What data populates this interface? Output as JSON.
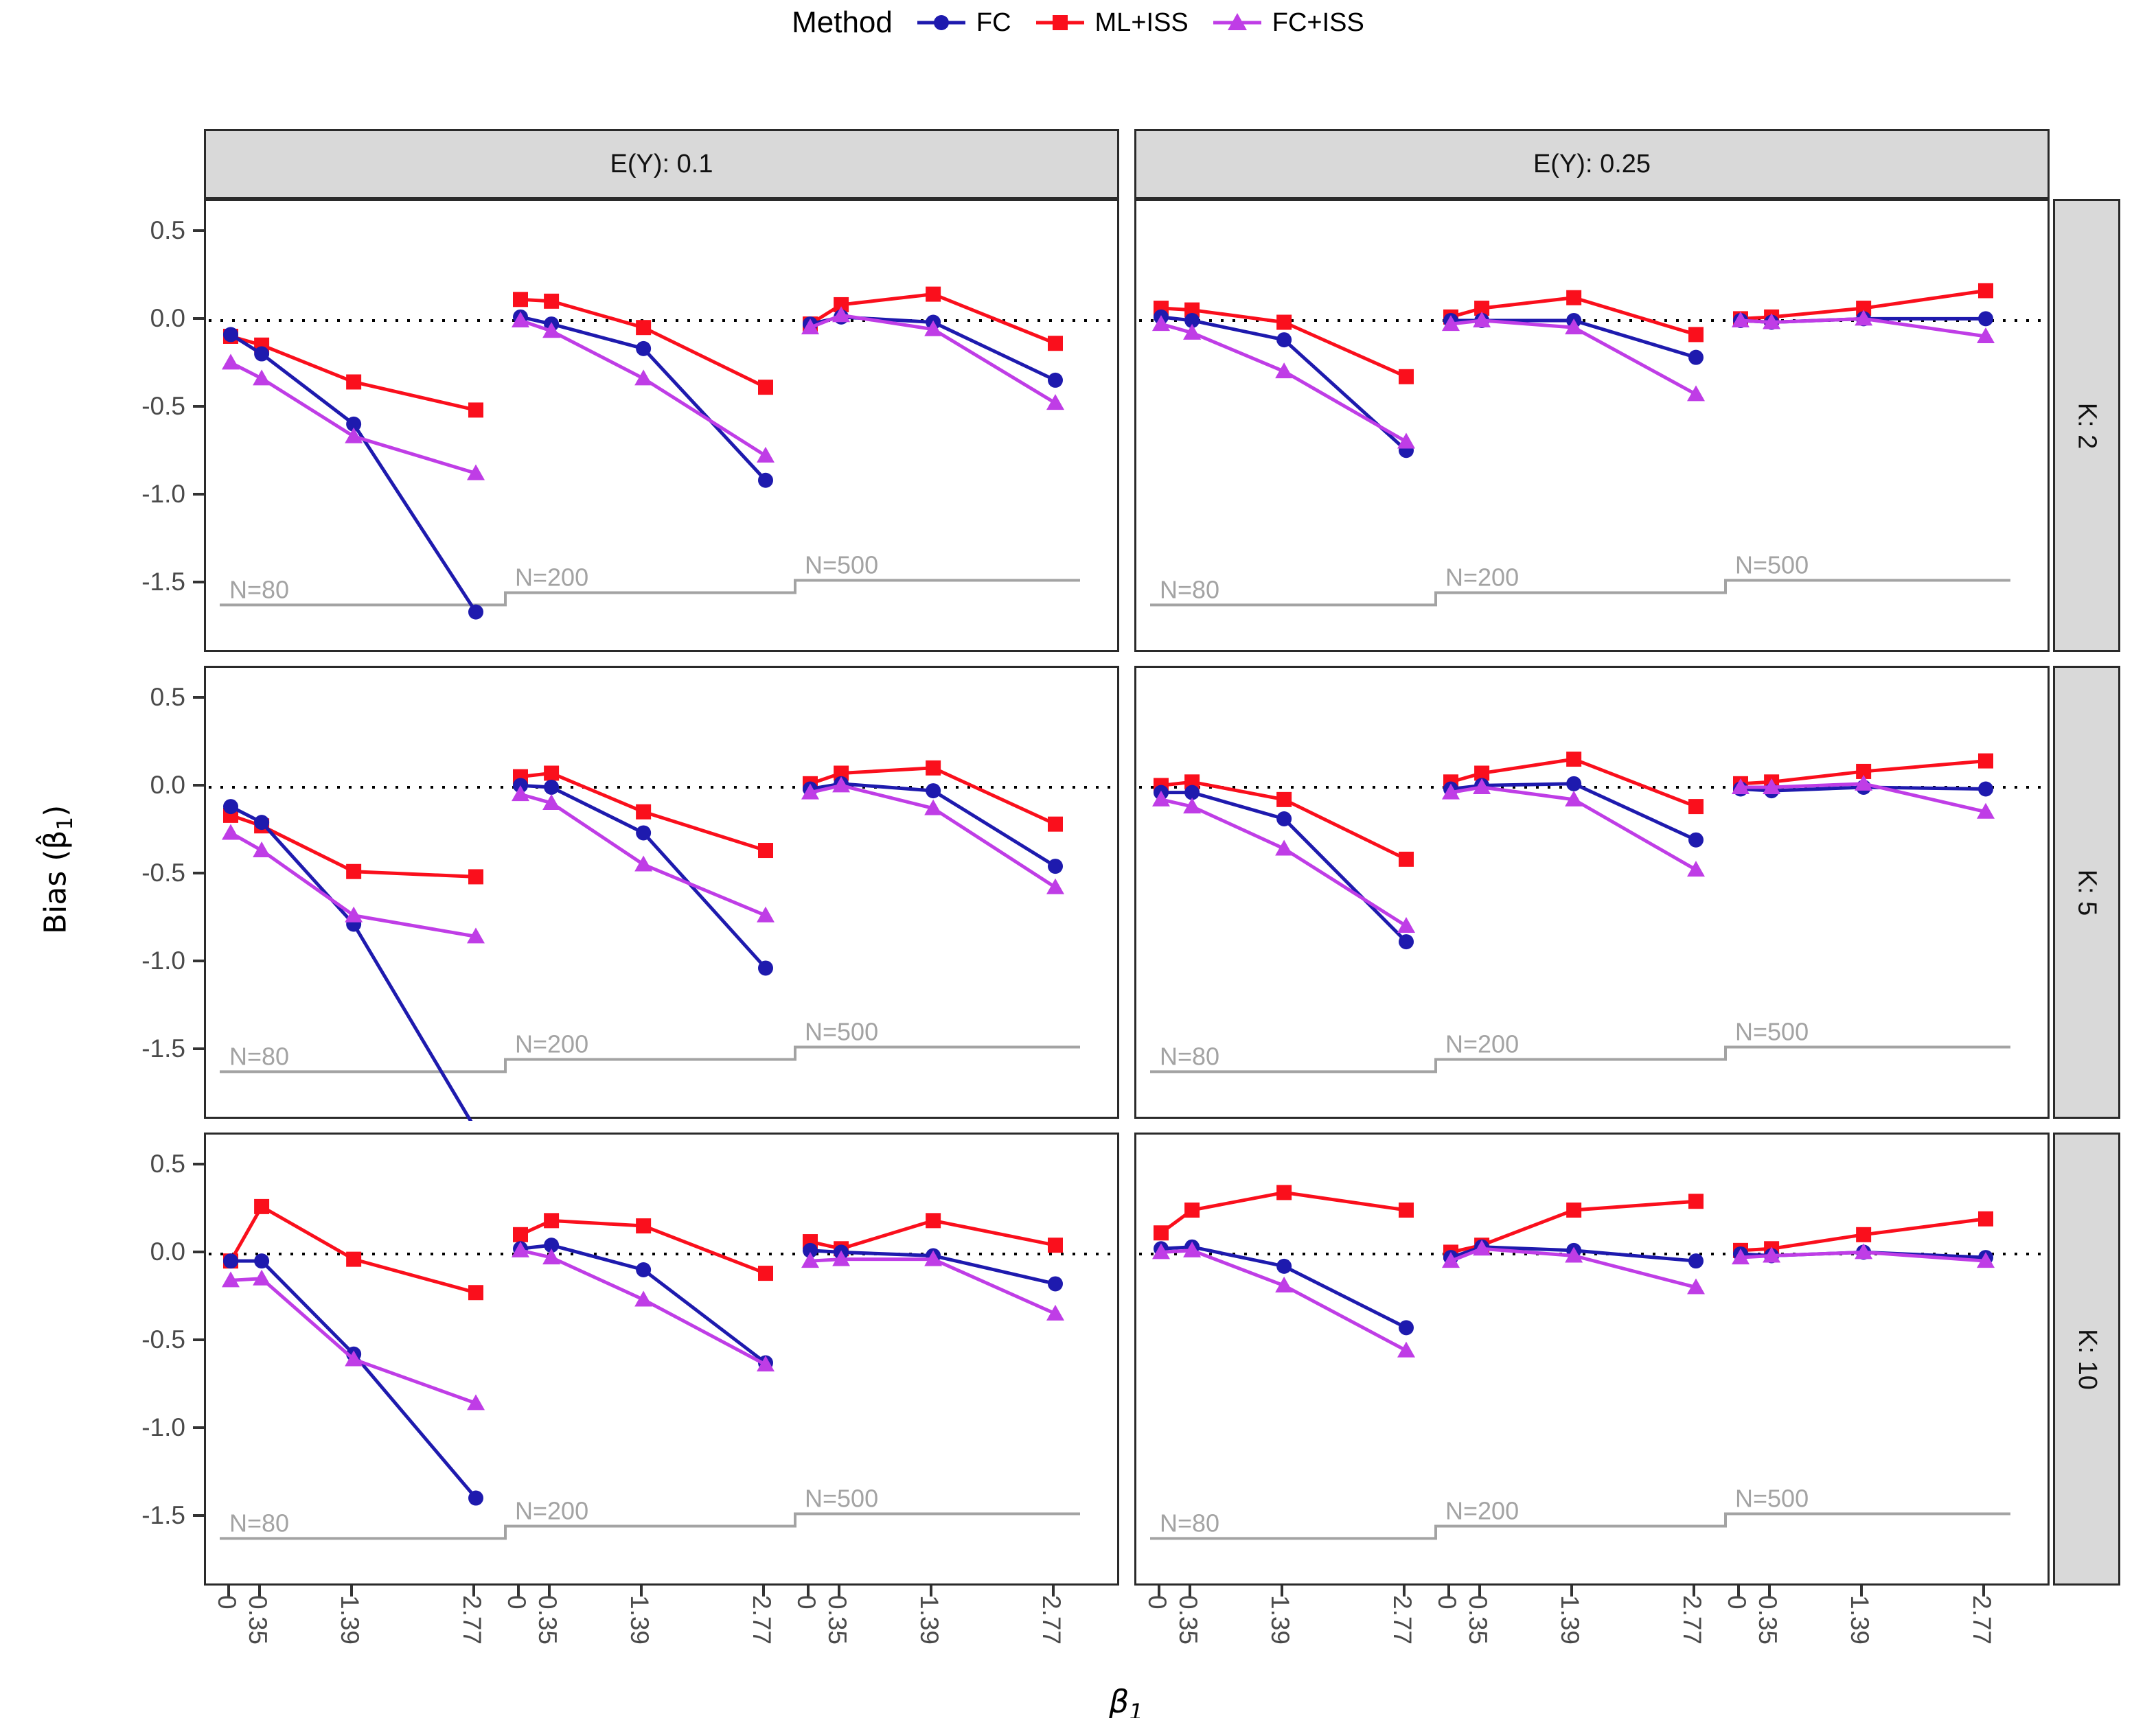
{
  "chart_data": {
    "type": "line",
    "legend": {
      "title": "Method",
      "position": "top",
      "items": [
        {
          "id": "FC",
          "label": "FC",
          "color": "#1e1aae",
          "marker": "circle"
        },
        {
          "id": "ML",
          "label": "ML+ISS",
          "color": "#fa0f1c",
          "marker": "square"
        },
        {
          "id": "FCISS",
          "label": "FC+ISS",
          "color": "#bf3de6",
          "marker": "triangle"
        }
      ]
    },
    "xlabel": "β₁",
    "ylabel": "Bias (β̂₁)",
    "facet_cols": [
      "E(Y): 0.1",
      "E(Y): 0.25"
    ],
    "facet_rows": [
      "K: 2",
      "K: 5",
      "K: 10"
    ],
    "groups": [
      "N=80",
      "N=200",
      "N=500"
    ],
    "x": [
      0,
      0.35,
      1.39,
      2.77
    ],
    "x_tick_labels": [
      "0",
      "0.35",
      "1.39",
      "2.77"
    ],
    "y_ticks": [
      0.5,
      0.0,
      -0.5,
      -1.0,
      -1.5
    ],
    "y_tick_labels": [
      "0.5",
      "0.0",
      "-0.5",
      "-1.0",
      "-1.5"
    ],
    "ylim": [
      -1.9,
      0.68
    ],
    "grid": "off",
    "zero_reference_line": "dotted",
    "group_baseline_values": [
      -1.62,
      -1.55,
      -1.48
    ],
    "baseline_color": "#a3a3a3",
    "panels": [
      {
        "row": 0,
        "col": 0,
        "groups": [
          {
            "n": "N=80",
            "FC": [
              -0.08,
              -0.19,
              -0.59,
              -1.66
            ],
            "ML": [
              -0.09,
              -0.14,
              -0.35,
              -0.51
            ],
            "FCISS": [
              -0.24,
              -0.33,
              -0.66,
              -0.87
            ]
          },
          {
            "n": "N=200",
            "FC": [
              0.02,
              -0.02,
              -0.16,
              -0.91
            ],
            "ML": [
              0.12,
              0.11,
              -0.04,
              -0.38
            ],
            "FCISS": [
              0.0,
              -0.06,
              -0.33,
              -0.77
            ]
          },
          {
            "n": "N=500",
            "FC": [
              -0.02,
              0.02,
              -0.01,
              -0.34
            ],
            "ML": [
              -0.02,
              0.09,
              0.15,
              -0.13
            ],
            "FCISS": [
              -0.04,
              0.03,
              -0.05,
              -0.47
            ]
          }
        ]
      },
      {
        "row": 0,
        "col": 1,
        "groups": [
          {
            "n": "N=80",
            "FC": [
              0.02,
              0.0,
              -0.11,
              -0.74
            ],
            "ML": [
              0.07,
              0.06,
              -0.01,
              -0.32
            ],
            "FCISS": [
              -0.02,
              -0.07,
              -0.29,
              -0.69
            ]
          },
          {
            "n": "N=200",
            "FC": [
              0.0,
              0.0,
              0.0,
              -0.21
            ],
            "ML": [
              0.02,
              0.07,
              0.13,
              -0.08
            ],
            "FCISS": [
              -0.02,
              0.0,
              -0.04,
              -0.42
            ]
          },
          {
            "n": "N=500",
            "FC": [
              0.0,
              -0.01,
              0.01,
              0.01
            ],
            "ML": [
              0.01,
              0.02,
              0.07,
              0.17
            ],
            "FCISS": [
              0.0,
              -0.01,
              0.01,
              -0.09
            ]
          }
        ]
      },
      {
        "row": 1,
        "col": 0,
        "groups": [
          {
            "n": "N=80",
            "FC": [
              -0.11,
              -0.2,
              -0.78,
              -1.95
            ],
            "ML": [
              -0.16,
              -0.22,
              -0.48,
              -0.51
            ],
            "FCISS": [
              -0.26,
              -0.36,
              -0.73,
              -0.85
            ]
          },
          {
            "n": "N=200",
            "FC": [
              0.01,
              0.0,
              -0.26,
              -1.03
            ],
            "ML": [
              0.06,
              0.08,
              -0.14,
              -0.36
            ],
            "FCISS": [
              -0.04,
              -0.09,
              -0.44,
              -0.73
            ]
          },
          {
            "n": "N=500",
            "FC": [
              -0.01,
              0.02,
              -0.02,
              -0.45
            ],
            "ML": [
              0.02,
              0.08,
              0.11,
              -0.21
            ],
            "FCISS": [
              -0.03,
              0.01,
              -0.12,
              -0.57
            ]
          }
        ]
      },
      {
        "row": 1,
        "col": 1,
        "groups": [
          {
            "n": "N=80",
            "FC": [
              -0.03,
              -0.03,
              -0.18,
              -0.88
            ],
            "ML": [
              0.01,
              0.03,
              -0.07,
              -0.41
            ],
            "FCISS": [
              -0.07,
              -0.11,
              -0.35,
              -0.79
            ]
          },
          {
            "n": "N=200",
            "FC": [
              -0.01,
              0.01,
              0.02,
              -0.3
            ],
            "ML": [
              0.03,
              0.08,
              0.16,
              -0.11
            ],
            "FCISS": [
              -0.03,
              0.0,
              -0.07,
              -0.47
            ]
          },
          {
            "n": "N=500",
            "FC": [
              -0.01,
              -0.02,
              0.0,
              -0.01
            ],
            "ML": [
              0.02,
              0.03,
              0.09,
              0.15
            ],
            "FCISS": [
              0.0,
              0.0,
              0.02,
              -0.14
            ]
          }
        ]
      },
      {
        "row": 2,
        "col": 0,
        "groups": [
          {
            "n": "N=80",
            "FC": [
              -0.04,
              -0.04,
              -0.57,
              -1.39
            ],
            "ML": [
              -0.04,
              0.27,
              -0.03,
              -0.22
            ],
            "FCISS": [
              -0.15,
              -0.14,
              -0.6,
              -0.85
            ]
          },
          {
            "n": "N=200",
            "FC": [
              0.03,
              0.05,
              -0.09,
              -0.62
            ],
            "ML": [
              0.11,
              0.19,
              0.16,
              -0.11
            ],
            "FCISS": [
              0.02,
              -0.02,
              -0.26,
              -0.63
            ]
          },
          {
            "n": "N=500",
            "FC": [
              0.02,
              0.01,
              -0.01,
              -0.17
            ],
            "ML": [
              0.07,
              0.03,
              0.19,
              0.05
            ],
            "FCISS": [
              -0.04,
              -0.03,
              -0.03,
              -0.34
            ]
          }
        ]
      },
      {
        "row": 2,
        "col": 1,
        "groups": [
          {
            "n": "N=80",
            "FC": [
              0.03,
              0.04,
              -0.07,
              -0.42
            ],
            "ML": [
              0.12,
              0.25,
              0.35,
              0.25
            ],
            "FCISS": [
              0.01,
              0.02,
              -0.18,
              -0.55
            ]
          },
          {
            "n": "N=200",
            "FC": [
              -0.02,
              0.04,
              0.02,
              -0.04
            ],
            "ML": [
              0.01,
              0.05,
              0.25,
              0.3
            ],
            "FCISS": [
              -0.04,
              0.03,
              -0.01,
              -0.19
            ]
          },
          {
            "n": "N=500",
            "FC": [
              0.0,
              -0.01,
              0.01,
              -0.02
            ],
            "ML": [
              0.02,
              0.03,
              0.11,
              0.2
            ],
            "FCISS": [
              -0.02,
              -0.01,
              0.01,
              -0.04
            ]
          }
        ]
      }
    ]
  }
}
